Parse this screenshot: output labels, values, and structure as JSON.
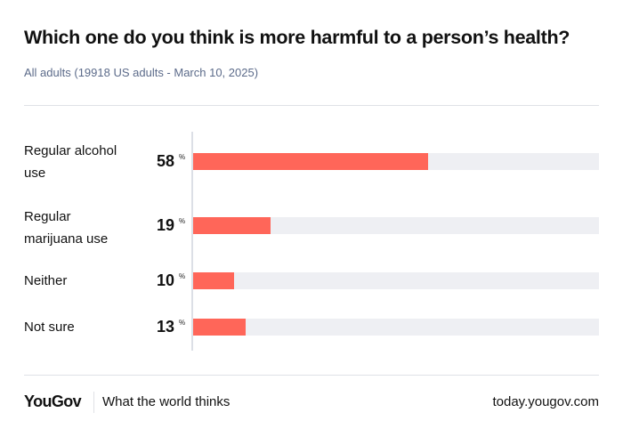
{
  "title": "Which one do you think is more harmful to a person’s health?",
  "subtitle": "All adults (19918 US adults - March 10, 2025)",
  "colors": {
    "bar": "#ff6659",
    "track": "#eeeff3"
  },
  "chart_data": {
    "type": "bar",
    "orientation": "horizontal",
    "categories": [
      "Regular alcohol use",
      "Regular marijuana use",
      "Neither",
      "Not sure"
    ],
    "values": [
      58,
      19,
      10,
      13
    ],
    "value_labels": [
      "58",
      "19",
      "10",
      "13"
    ],
    "unit": "%",
    "xlim": [
      0,
      100
    ]
  },
  "footer": {
    "logo": "YouGov",
    "tagline": "What the world thinks",
    "url": "today.yougov.com"
  }
}
